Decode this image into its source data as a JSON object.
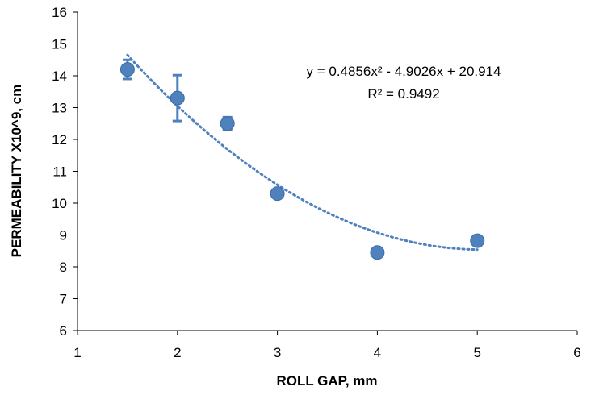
{
  "chart_data": {
    "type": "scatter",
    "xlabel": "ROLL GAP, mm",
    "ylabel": "PERMEABILITY X10^9, cm",
    "xlim": [
      1,
      6
    ],
    "ylim": [
      6,
      16
    ],
    "x_ticks": [
      "1",
      "2",
      "3",
      "4",
      "5",
      "6"
    ],
    "y_ticks": [
      "6",
      "7",
      "8",
      "9",
      "10",
      "11",
      "12",
      "13",
      "14",
      "15",
      "16"
    ],
    "grid": false,
    "series": [
      {
        "x": [
          1.5,
          2.0,
          2.5,
          3.0,
          4.0,
          5.0
        ],
        "y": [
          14.2,
          13.3,
          12.5,
          10.3,
          8.45,
          8.82
        ],
        "error": [
          0.3,
          0.72,
          0.2,
          0.12,
          0,
          0
        ],
        "color": "#4f81bd"
      }
    ],
    "trendline": {
      "kind": "polynomial",
      "coefficients": [
        0.4856,
        -4.9026,
        20.914
      ],
      "x_range": [
        1.5,
        5.0
      ],
      "equation": "y = 0.4856x² - 4.9026x + 20.914",
      "r_squared": "R² = 0.9492",
      "color": "#4f81bd"
    }
  }
}
